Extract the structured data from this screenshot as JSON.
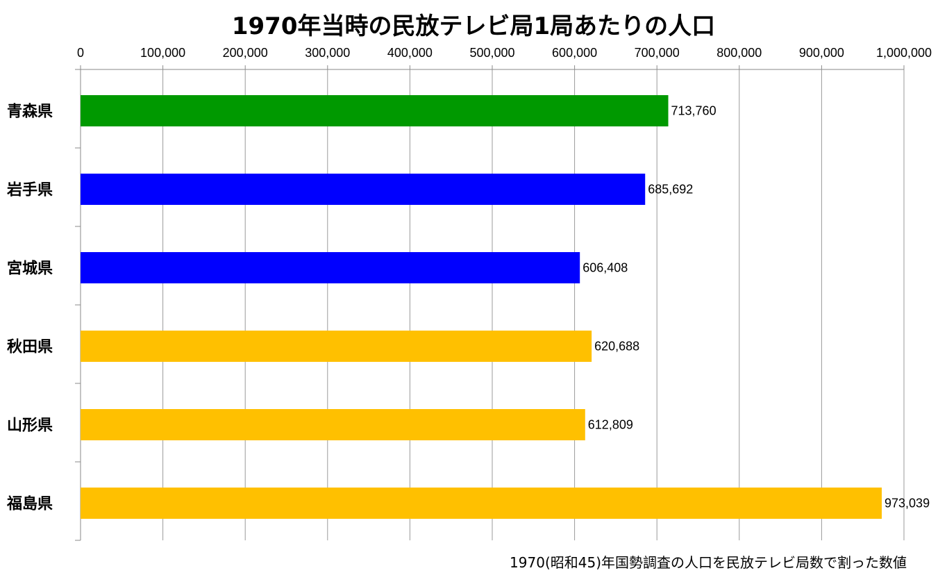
{
  "chart_data": {
    "type": "bar",
    "orientation": "horizontal",
    "title": "1970年当時の民放テレビ局1局あたりの人口",
    "categories": [
      "青森県",
      "岩手県",
      "宮城県",
      "秋田県",
      "山形県",
      "福島県"
    ],
    "values": [
      713760,
      685692,
      606408,
      620688,
      612809,
      973039
    ],
    "value_labels": [
      "713,760",
      "685,692",
      "606,408",
      "620,688",
      "612,809",
      "973,039"
    ],
    "bar_colors": [
      "#009900",
      "#0000ff",
      "#0000ff",
      "#ffc000",
      "#ffc000",
      "#ffc000"
    ],
    "xlim": [
      0,
      1000000
    ],
    "x_ticks": [
      0,
      100000,
      200000,
      300000,
      400000,
      500000,
      600000,
      700000,
      800000,
      900000,
      1000000
    ],
    "x_tick_labels": [
      "0",
      "100,000",
      "200,000",
      "300,000",
      "400,000",
      "500,000",
      "600,000",
      "700,000",
      "800,000",
      "900,000",
      "1,000,000"
    ],
    "x_axis_position": "top",
    "grid": true,
    "xlabel": "",
    "ylabel": ""
  },
  "footnote": "1970(昭和45)年国勢調査の人口を民放テレビ局数で割った数値"
}
